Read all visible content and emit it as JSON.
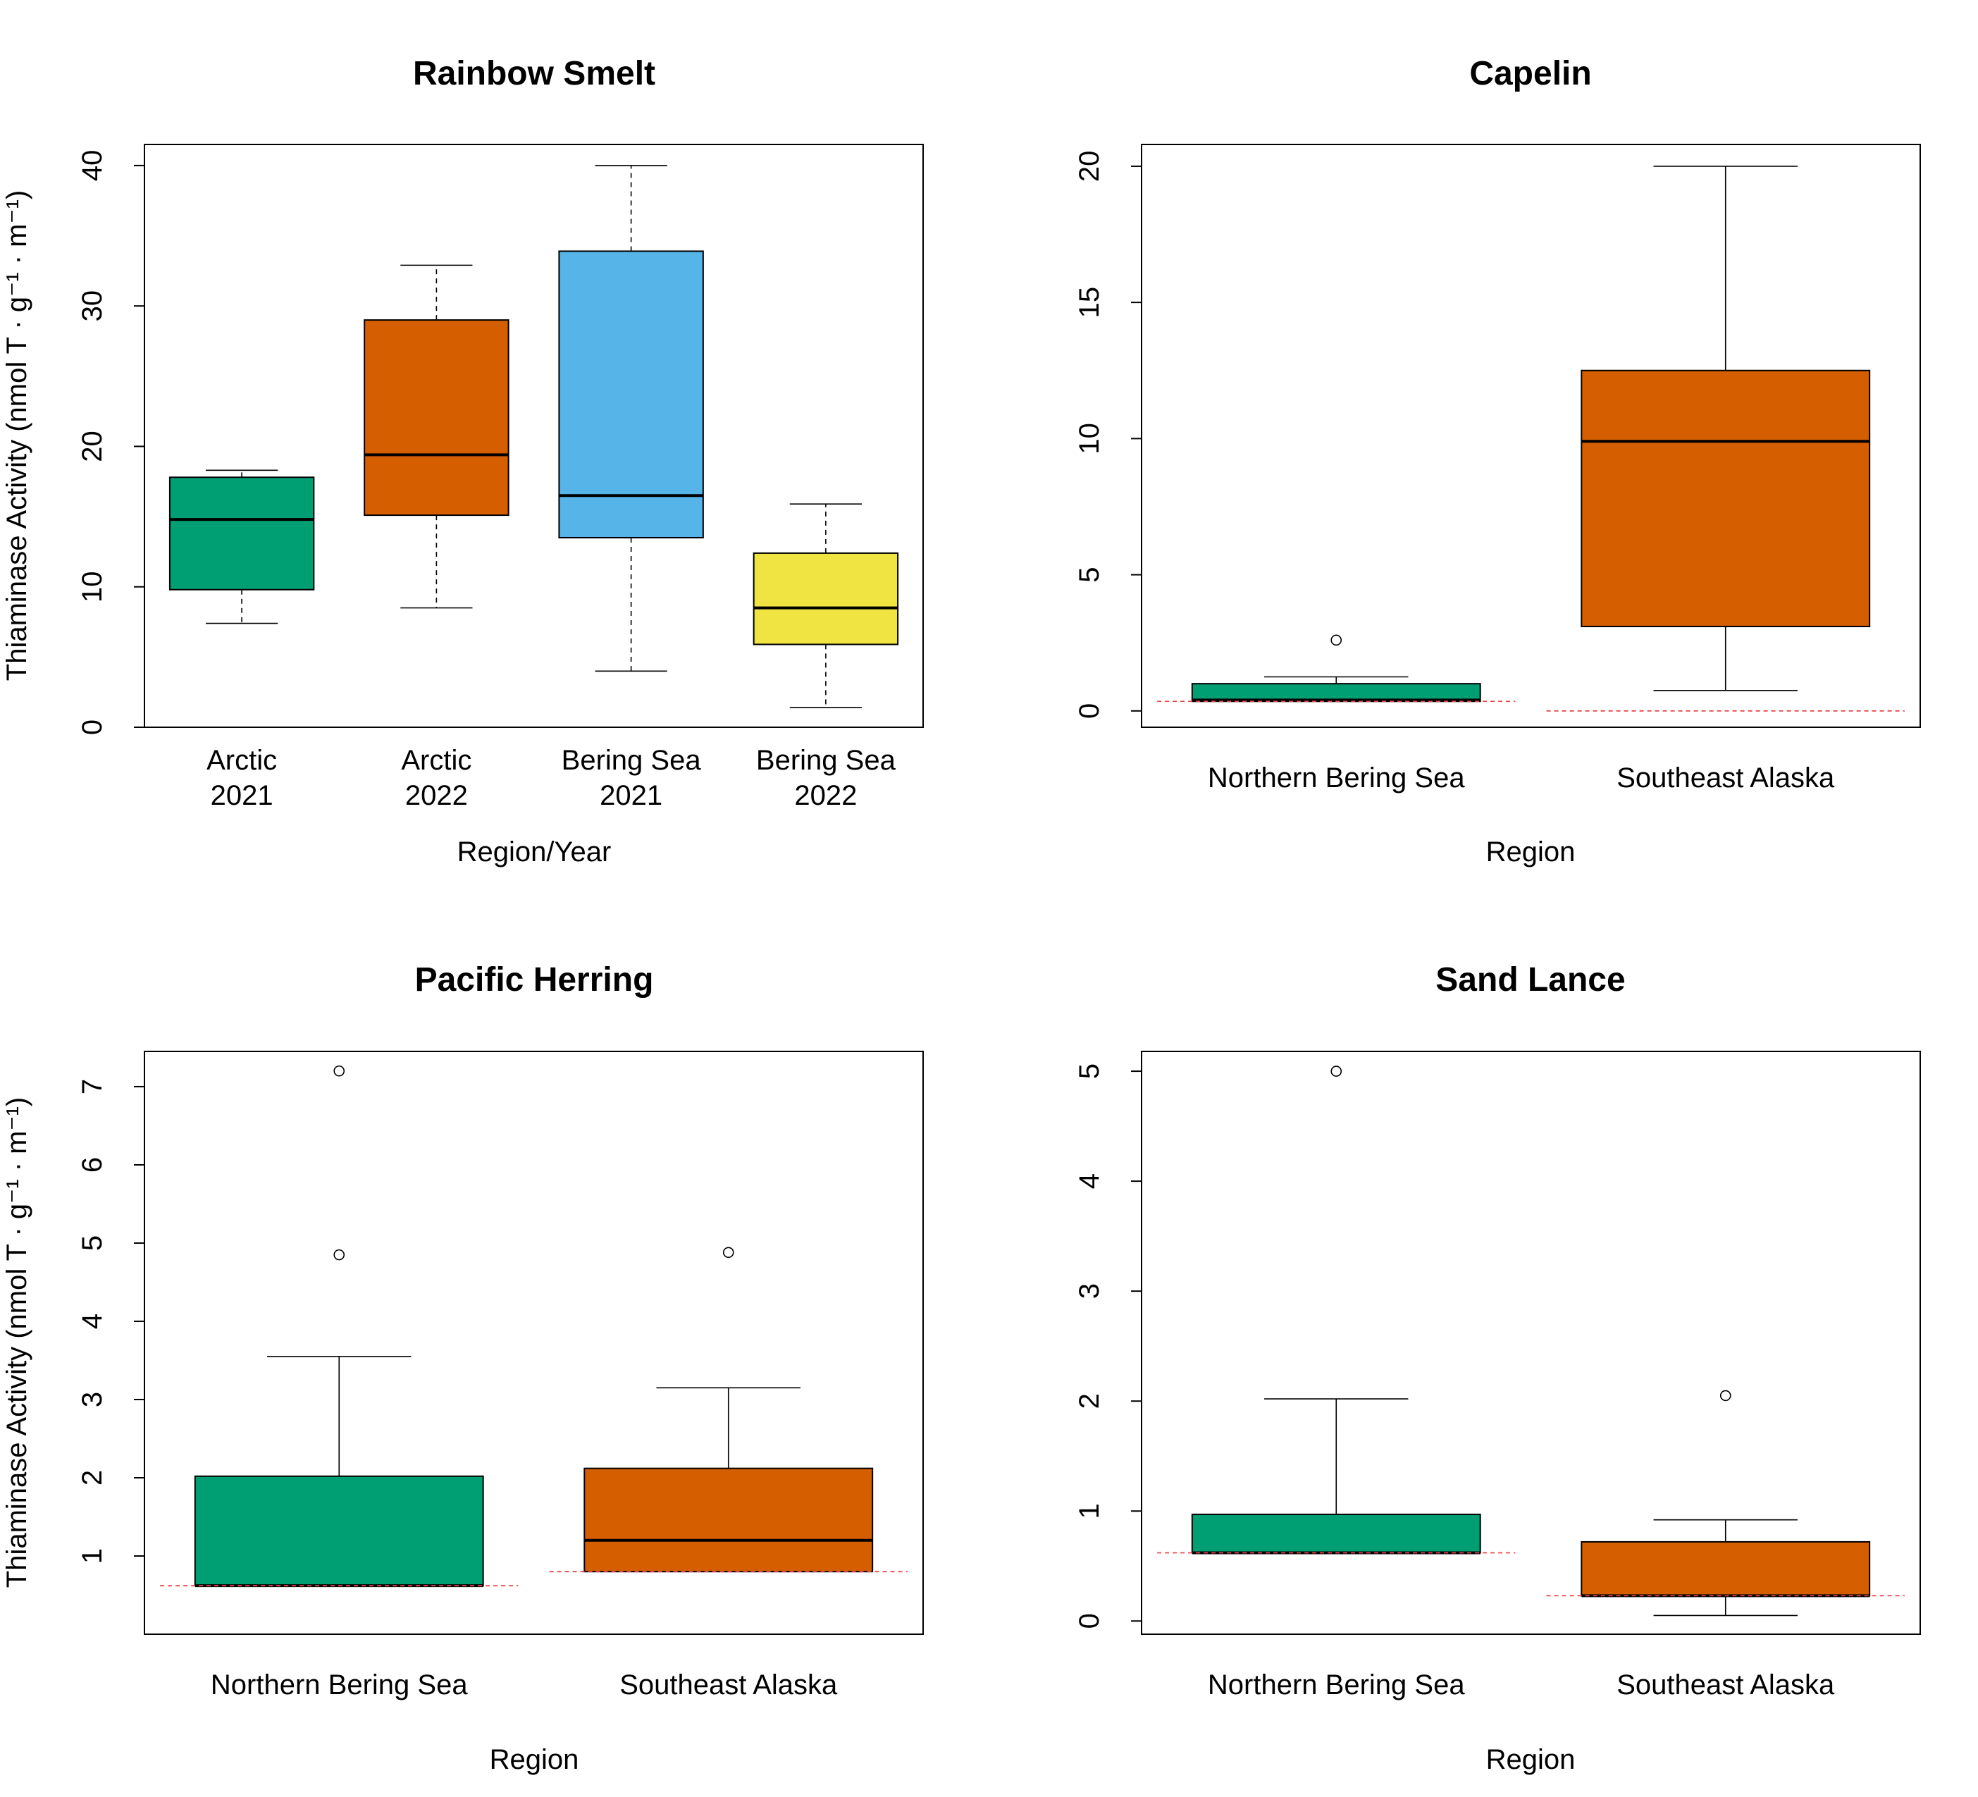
{
  "colors": {
    "green": "#009E73",
    "orange": "#D55E00",
    "blue": "#56B4E9",
    "yellow": "#F0E442",
    "detection_line": "#E8484A"
  },
  "y_axis_label": "Thiaminase Activity (nmol T · g⁻¹ · m⁻¹)",
  "chart_data": [
    {
      "id": "rainbow-smelt",
      "type": "box",
      "title": "Rainbow Smelt",
      "xlabel": "Region/Year",
      "ylabel": "Thiaminase Activity (nmol T · g⁻¹ · m⁻¹)",
      "show_ylabel": true,
      "ylim": [
        0,
        41.5
      ],
      "yticks": [
        0,
        10,
        20,
        30,
        40
      ],
      "whisker_style": "dashed",
      "categories": [
        [
          "Arctic",
          "2021"
        ],
        [
          "Arctic",
          "2022"
        ],
        [
          "Bering Sea",
          "2021"
        ],
        [
          "Bering Sea",
          "2022"
        ]
      ],
      "boxes": [
        {
          "color": "#009E73",
          "whisker_low": 7.4,
          "q1": 9.8,
          "median": 14.8,
          "q3": 17.8,
          "whisker_high": 18.3,
          "outliers": [],
          "detection_limit": null
        },
        {
          "color": "#D55E00",
          "whisker_low": 8.5,
          "q1": 15.1,
          "median": 19.4,
          "q3": 29.0,
          "whisker_high": 32.9,
          "outliers": [],
          "detection_limit": null
        },
        {
          "color": "#56B4E9",
          "whisker_low": 4.0,
          "q1": 13.5,
          "median": 16.5,
          "q3": 33.9,
          "whisker_high": 40.0,
          "outliers": [],
          "detection_limit": null
        },
        {
          "color": "#F0E442",
          "whisker_low": 1.4,
          "q1": 5.9,
          "median": 8.5,
          "q3": 12.4,
          "whisker_high": 15.9,
          "outliers": [],
          "detection_limit": null
        }
      ]
    },
    {
      "id": "capelin",
      "type": "box",
      "title": "Capelin",
      "xlabel": "Region",
      "ylabel": "Thiaminase Activity (nmol T · g⁻¹ · m⁻¹)",
      "show_ylabel": false,
      "ylim": [
        -0.6,
        20.8
      ],
      "yticks": [
        0,
        5,
        10,
        15,
        20
      ],
      "whisker_style": "solid",
      "categories": [
        [
          "Northern Bering Sea"
        ],
        [
          "Southeast Alaska"
        ]
      ],
      "boxes": [
        {
          "color": "#009E73",
          "whisker_low": 0.35,
          "q1": 0.35,
          "median": 0.4,
          "q3": 1.0,
          "whisker_high": 1.25,
          "outliers": [
            2.6
          ],
          "detection_limit": 0.35
        },
        {
          "color": "#D55E00",
          "whisker_low": 0.75,
          "q1": 3.1,
          "median": 9.9,
          "q3": 12.5,
          "whisker_high": 20.0,
          "outliers": [],
          "detection_limit": 0.0
        }
      ]
    },
    {
      "id": "pacific-herring",
      "type": "box",
      "title": "Pacific Herring",
      "xlabel": "Region",
      "ylabel": "Thiaminase Activity (nmol T · g⁻¹ · m⁻¹)",
      "show_ylabel": true,
      "ylim": [
        0,
        7.45
      ],
      "yticks": [
        1,
        2,
        3,
        4,
        5,
        6,
        7
      ],
      "whisker_style": "solid",
      "categories": [
        [
          "Northern Bering Sea"
        ],
        [
          "Southeast Alaska"
        ]
      ],
      "boxes": [
        {
          "color": "#009E73",
          "whisker_low": 0.62,
          "q1": 0.62,
          "median": 0.62,
          "q3": 2.02,
          "whisker_high": 3.55,
          "outliers": [
            4.85,
            7.2
          ],
          "detection_limit": 0.62
        },
        {
          "color": "#D55E00",
          "whisker_low": 0.8,
          "q1": 0.8,
          "median": 1.2,
          "q3": 2.12,
          "whisker_high": 3.15,
          "outliers": [
            4.88
          ],
          "detection_limit": 0.8
        }
      ]
    },
    {
      "id": "sand-lance",
      "type": "box",
      "title": "Sand Lance",
      "xlabel": "Region",
      "ylabel": "Thiaminase Activity (nmol T · g⁻¹ · m⁻¹)",
      "show_ylabel": false,
      "ylim": [
        -0.12,
        5.18
      ],
      "yticks": [
        0,
        1,
        2,
        3,
        4,
        5
      ],
      "whisker_style": "solid",
      "categories": [
        [
          "Northern Bering Sea"
        ],
        [
          "Southeast Alaska"
        ]
      ],
      "boxes": [
        {
          "color": "#009E73",
          "whisker_low": 0.62,
          "q1": 0.62,
          "median": 0.62,
          "q3": 0.97,
          "whisker_high": 2.02,
          "outliers": [
            5.0
          ],
          "detection_limit": 0.62
        },
        {
          "color": "#D55E00",
          "whisker_low": 0.05,
          "q1": 0.23,
          "median": 0.23,
          "q3": 0.72,
          "whisker_high": 0.92,
          "outliers": [
            2.05
          ],
          "detection_limit": 0.23
        }
      ]
    }
  ]
}
